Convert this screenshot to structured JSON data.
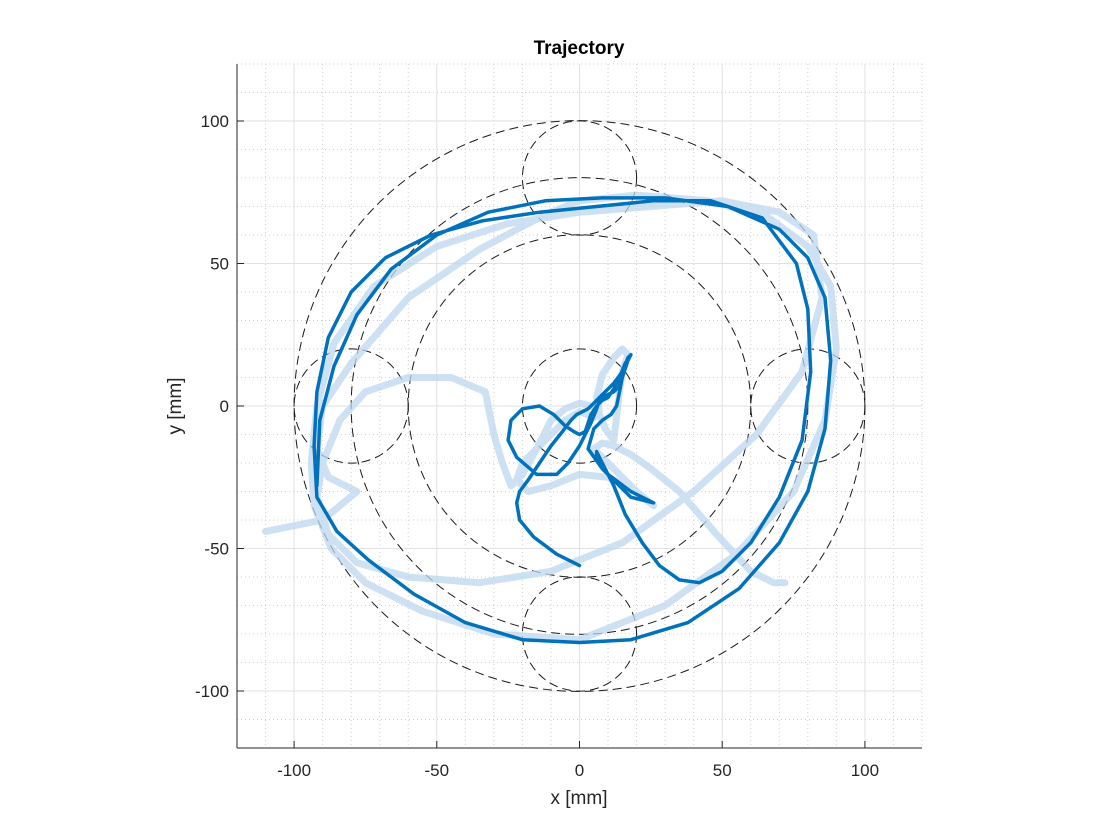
{
  "chart_data": {
    "type": "line",
    "title": "Trajectory",
    "xlabel": "x [mm]",
    "ylabel": "y [mm]",
    "xlim": [
      -120,
      120
    ],
    "ylim": [
      -120,
      120
    ],
    "xticks": [
      -100,
      -50,
      0,
      50,
      100
    ],
    "yticks": [
      -100,
      -50,
      0,
      50,
      100
    ],
    "xtick_labels": [
      "-100",
      "-50",
      "0",
      "50",
      "100"
    ],
    "ytick_labels": [
      "-100",
      "-50",
      "0",
      "50",
      "100"
    ],
    "grid": "major+minor",
    "aspect": "equal",
    "reference_circles": [
      {
        "cx": 0,
        "cy": 0,
        "r": 100
      },
      {
        "cx": 0,
        "cy": 0,
        "r": 80
      },
      {
        "cx": 0,
        "cy": 0,
        "r": 60
      },
      {
        "cx": 0,
        "cy": 0,
        "r": 20
      },
      {
        "cx": 0,
        "cy": 80,
        "r": 20
      },
      {
        "cx": 0,
        "cy": -80,
        "r": 20
      },
      {
        "cx": -80,
        "cy": 0,
        "r": 20
      },
      {
        "cx": 80,
        "cy": 0,
        "r": 20
      }
    ],
    "series": [
      {
        "style": "raw",
        "color": "#bcd7ef",
        "x": [
          -110,
          -90,
          -84,
          -78,
          -88,
          -92,
          -90,
          -80,
          -60,
          -35,
          -20,
          -10,
          0,
          20,
          45,
          65,
          80,
          88,
          90,
          86,
          75,
          55,
          30,
          0,
          -30,
          -55,
          -75,
          -87,
          -93,
          -94,
          -92,
          -86,
          -72,
          -50,
          -25,
          0,
          25,
          50,
          70,
          82,
          85,
          78,
          62,
          40,
          15,
          -10,
          -35,
          -60,
          -78,
          -88,
          -92,
          -90,
          -84,
          -75,
          -60,
          -45,
          -33,
          -30,
          -27,
          -24,
          -20,
          -15,
          -10,
          -5,
          0,
          4,
          6,
          7,
          9,
          12,
          14,
          15,
          17,
          15,
          12,
          8,
          6,
          7,
          5,
          3,
          0,
          -5,
          -12,
          -20,
          -22,
          -18,
          -10,
          0,
          10,
          20,
          26,
          20,
          10,
          5,
          8,
          12,
          18,
          25,
          35,
          48,
          60,
          68,
          72
        ],
        "y": [
          -44,
          -40,
          -35,
          -30,
          -25,
          -15,
          0,
          15,
          38,
          55,
          63,
          68,
          72,
          74,
          72,
          67,
          56,
          42,
          20,
          -5,
          -30,
          -52,
          -70,
          -82,
          -80,
          -72,
          -62,
          -50,
          -35,
          -20,
          0,
          22,
          42,
          56,
          64,
          68,
          70,
          72,
          68,
          60,
          38,
          12,
          -10,
          -30,
          -48,
          -58,
          -62,
          -60,
          -55,
          -45,
          -32,
          -20,
          -5,
          5,
          10,
          10,
          5,
          -10,
          -20,
          -28,
          -24,
          -15,
          -5,
          -1,
          1,
          0,
          -1,
          -3,
          -8,
          -12,
          5,
          12,
          18,
          20,
          17,
          11,
          3,
          -2,
          -4,
          -3,
          -2,
          -5,
          -12,
          -20,
          -26,
          -30,
          -28,
          -24,
          -25,
          -30,
          -35,
          -30,
          -20,
          -15,
          -13,
          -14,
          -17,
          -22,
          -30,
          -45,
          -58,
          -62,
          -62
        ]
      },
      {
        "style": "smooth",
        "color": "#0072bd",
        "x": [
          -92,
          -91,
          -86,
          -78,
          -66,
          -50,
          -32,
          -12,
          8,
          30,
          52,
          70,
          80,
          86,
          88,
          86,
          80,
          70,
          56,
          38,
          18,
          0,
          -20,
          -40,
          -58,
          -74,
          -85,
          -92,
          -93,
          -92,
          -88,
          -80,
          -68,
          -52,
          -34,
          -14,
          6,
          26,
          46,
          64,
          76,
          80,
          81,
          78,
          70,
          60,
          50,
          42,
          35,
          28,
          22,
          16,
          12,
          8,
          6,
          6,
          10,
          18,
          26,
          18,
          8,
          3,
          5,
          8,
          11,
          13,
          14,
          15,
          17,
          18,
          16,
          14,
          12,
          10,
          8,
          6,
          4,
          3,
          2,
          0,
          -2,
          -5,
          -9,
          -14,
          -20,
          -24,
          -25,
          -22,
          -15,
          -8,
          -4,
          0,
          4,
          6,
          7,
          8,
          10,
          12,
          14,
          15,
          17,
          18,
          17,
          15,
          12,
          8,
          5,
          3,
          1,
          -1,
          -3,
          -6,
          -10,
          -14,
          -18,
          -21,
          -22,
          -21,
          -16,
          -8,
          0
        ],
        "y": [
          -28,
          -5,
          14,
          32,
          48,
          60,
          68,
          72,
          73,
          73,
          70,
          62,
          52,
          38,
          16,
          -8,
          -30,
          -48,
          -64,
          -76,
          -82,
          -83,
          -82,
          -76,
          -66,
          -54,
          -44,
          -32,
          -14,
          5,
          24,
          40,
          52,
          60,
          65,
          68,
          70,
          72,
          72,
          66,
          50,
          34,
          12,
          -12,
          -32,
          -48,
          -58,
          -62,
          -61,
          -56,
          -48,
          -38,
          -28,
          -20,
          -16,
          -18,
          -24,
          -30,
          -34,
          -32,
          -22,
          -15,
          -8,
          -5,
          -3,
          0,
          5,
          10,
          16,
          18,
          15,
          10,
          6,
          3,
          2,
          0,
          -3,
          -6,
          -9,
          -10,
          -9,
          -7,
          -3,
          0,
          -1,
          -5,
          -12,
          -18,
          -24,
          -24,
          -20,
          -14,
          -6,
          -1,
          2,
          3,
          4,
          5,
          7,
          12,
          16,
          18,
          17,
          12,
          8,
          4,
          1,
          -1,
          -2,
          -3,
          -5,
          -9,
          -14,
          -20,
          -26,
          -30,
          -34,
          -40,
          -46,
          -52,
          -56
        ]
      }
    ]
  }
}
